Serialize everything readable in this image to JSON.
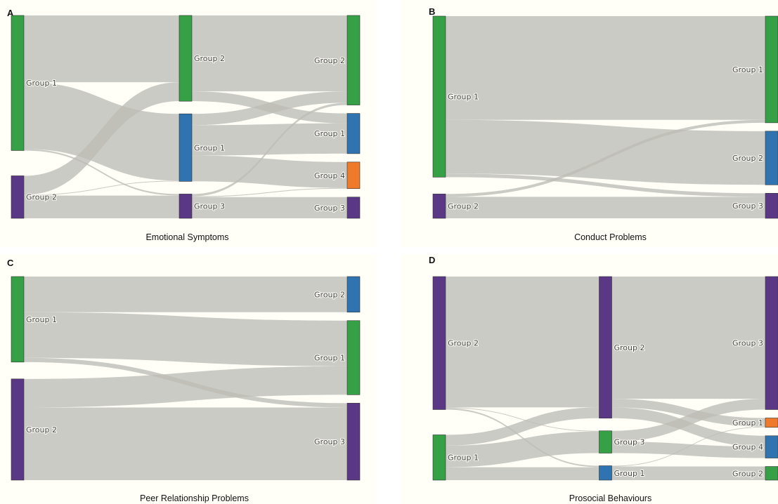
{
  "colors": {
    "green": "#36a046",
    "blue": "#2f74b0",
    "purple": "#5a3886",
    "orange": "#ef7a2b",
    "link": "#bdbcb6"
  },
  "chart_data": [
    {
      "type": "sankey",
      "letter": "A",
      "title": "Emotional Symptoms",
      "columns": [
        [
          {
            "id": "a0g1",
            "label": "Group 1",
            "color": "green"
          },
          {
            "id": "a0g2",
            "label": "Group 2",
            "color": "purple"
          }
        ],
        [
          {
            "id": "a1g2",
            "label": "Group 2",
            "color": "green"
          },
          {
            "id": "a1g1",
            "label": "Group 1",
            "color": "blue"
          },
          {
            "id": "a1g3",
            "label": "Group 3",
            "color": "purple"
          }
        ],
        [
          {
            "id": "a2g2",
            "label": "Group 2",
            "color": "green"
          },
          {
            "id": "a2g1",
            "label": "Group 1",
            "color": "blue"
          },
          {
            "id": "a2g4",
            "label": "Group 4",
            "color": "orange"
          },
          {
            "id": "a2g3",
            "label": "Group 3",
            "color": "purple"
          }
        ]
      ],
      "links": [
        {
          "source": "a0g1",
          "target": "a1g2",
          "value": 88
        },
        {
          "source": "a0g1",
          "target": "a1g1",
          "value": 88
        },
        {
          "source": "a0g1",
          "target": "a1g3",
          "value": 2
        },
        {
          "source": "a0g2",
          "target": "a1g2",
          "value": 25
        },
        {
          "source": "a0g2",
          "target": "a1g1",
          "value": 1
        },
        {
          "source": "a0g2",
          "target": "a1g3",
          "value": 30
        },
        {
          "source": "a1g2",
          "target": "a2g2",
          "value": 100
        },
        {
          "source": "a1g2",
          "target": "a2g1",
          "value": 13
        },
        {
          "source": "a1g1",
          "target": "a2g2",
          "value": 15
        },
        {
          "source": "a1g1",
          "target": "a2g1",
          "value": 40
        },
        {
          "source": "a1g1",
          "target": "a2g4",
          "value": 34
        },
        {
          "source": "a1g3",
          "target": "a2g2",
          "value": 3
        },
        {
          "source": "a1g3",
          "target": "a2g4",
          "value": 1
        },
        {
          "source": "a1g3",
          "target": "a2g3",
          "value": 28
        }
      ]
    },
    {
      "type": "sankey",
      "letter": "B",
      "title": "Conduct Problems",
      "columns": [
        [
          {
            "id": "b0g1",
            "label": "Group 1",
            "color": "green"
          },
          {
            "id": "b0g2",
            "label": "Group 2",
            "color": "purple"
          }
        ],
        [
          {
            "id": "b1g1",
            "label": "Group 1",
            "color": "green"
          },
          {
            "id": "b1g2",
            "label": "Group 2",
            "color": "blue"
          },
          {
            "id": "b1g3",
            "label": "Group 3",
            "color": "purple"
          }
        ]
      ],
      "links": [
        {
          "source": "b0g1",
          "target": "b1g1",
          "value": 145
        },
        {
          "source": "b0g1",
          "target": "b1g2",
          "value": 75
        },
        {
          "source": "b0g1",
          "target": "b1g3",
          "value": 5
        },
        {
          "source": "b0g2",
          "target": "b1g1",
          "value": 4
        },
        {
          "source": "b0g2",
          "target": "b1g3",
          "value": 30
        }
      ]
    },
    {
      "type": "sankey",
      "letter": "C",
      "title": "Peer  Relationship Problems",
      "columns": [
        [
          {
            "id": "c0g1",
            "label": "Group 1",
            "color": "green"
          },
          {
            "id": "c0g2",
            "label": "Group 2",
            "color": "purple"
          }
        ],
        [
          {
            "id": "c1g2",
            "label": "Group 2",
            "color": "blue"
          },
          {
            "id": "c1g1",
            "label": "Group 1",
            "color": "green"
          },
          {
            "id": "c1g3",
            "label": "Group 3",
            "color": "purple"
          }
        ]
      ],
      "links": [
        {
          "source": "c0g1",
          "target": "c1g2",
          "value": 50
        },
        {
          "source": "c0g1",
          "target": "c1g1",
          "value": 64
        },
        {
          "source": "c0g1",
          "target": "c1g3",
          "value": 6
        },
        {
          "source": "c0g2",
          "target": "c1g1",
          "value": 40
        },
        {
          "source": "c0g2",
          "target": "c1g3",
          "value": 102
        }
      ]
    },
    {
      "type": "sankey",
      "letter": "D",
      "title": "Prosocial Behaviours",
      "columns": [
        [
          {
            "id": "d0g2",
            "label": "Group 2",
            "color": "purple"
          },
          {
            "id": "d0g1",
            "label": "Group 1",
            "color": "green"
          }
        ],
        [
          {
            "id": "d1g2",
            "label": "Group 2",
            "color": "purple"
          },
          {
            "id": "d1g3",
            "label": "Group 3",
            "color": "green"
          },
          {
            "id": "d1g1",
            "label": "Group 1",
            "color": "blue"
          }
        ],
        [
          {
            "id": "d2g3",
            "label": "Group 3",
            "color": "purple"
          },
          {
            "id": "d2g1",
            "label": "Group 1",
            "color": "orange"
          },
          {
            "id": "d2g4",
            "label": "Group 4",
            "color": "blue"
          },
          {
            "id": "d2g2",
            "label": "Group 2",
            "color": "green"
          }
        ]
      ],
      "links": [
        {
          "source": "d0g2",
          "target": "d1g2",
          "value": 182
        },
        {
          "source": "d0g2",
          "target": "d1g3",
          "value": 1
        },
        {
          "source": "d0g2",
          "target": "d1g1",
          "value": 2
        },
        {
          "source": "d0g1",
          "target": "d1g2",
          "value": 15
        },
        {
          "source": "d0g1",
          "target": "d1g3",
          "value": 30
        },
        {
          "source": "d0g1",
          "target": "d1g1",
          "value": 18
        },
        {
          "source": "d1g2",
          "target": "d2g3",
          "value": 170
        },
        {
          "source": "d1g2",
          "target": "d2g1",
          "value": 12
        },
        {
          "source": "d1g2",
          "target": "d2g4",
          "value": 15
        },
        {
          "source": "d1g3",
          "target": "d2g3",
          "value": 15
        },
        {
          "source": "d1g3",
          "target": "d2g4",
          "value": 16
        },
        {
          "source": "d1g1",
          "target": "d2g1",
          "value": 1
        },
        {
          "source": "d1g1",
          "target": "d2g2",
          "value": 19
        }
      ]
    }
  ]
}
